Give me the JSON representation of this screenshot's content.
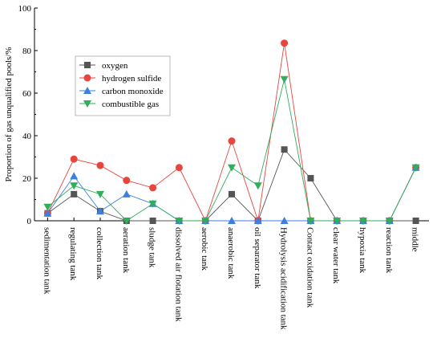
{
  "chart_data": {
    "type": "line",
    "ylabel": "Proportion of gas unqualified pools/%",
    "xlabel": "",
    "ylim": [
      0,
      100
    ],
    "yticks": [
      0,
      20,
      40,
      60,
      80,
      100
    ],
    "categories": [
      "sedimentation tank",
      "regulating tank",
      "collection tank",
      "aeration tank",
      "sludge tank",
      "dissolved air flotation tank",
      "aerobic tank",
      "anaerobic tank",
      "oil separator tank",
      "Hydrolysis acidification tank",
      "Contact oxidation tank",
      "clear water tank",
      "hypoxia tank",
      "reaction tank",
      "middle"
    ],
    "series": [
      {
        "name": "oxygen",
        "color": "#555555",
        "marker": "square",
        "values": [
          3.5,
          12.5,
          4.5,
          0,
          0,
          0,
          0,
          12.5,
          0,
          33.5,
          20,
          0,
          0,
          0,
          0
        ]
      },
      {
        "name": "hydrogen sulfide",
        "color": "#e8453c",
        "marker": "circle",
        "values": [
          3.5,
          29,
          26,
          19,
          15.5,
          25,
          0,
          37.5,
          0,
          83.5,
          0,
          0,
          0,
          0,
          25
        ]
      },
      {
        "name": "carbon monoxide",
        "color": "#3b7fe0",
        "marker": "triangle-up",
        "values": [
          3.5,
          21,
          4.5,
          12.5,
          8,
          0,
          0,
          0,
          0,
          0,
          0,
          0,
          0,
          0,
          25
        ]
      },
      {
        "name": "combustible gas",
        "color": "#2fae5b",
        "marker": "triangle-down",
        "values": [
          6.5,
          16.5,
          12.5,
          0,
          8,
          0,
          0,
          25,
          16.5,
          66.5,
          0,
          0,
          0,
          0,
          25
        ]
      }
    ],
    "legend": {
      "position": "top-left"
    },
    "grid": false
  }
}
